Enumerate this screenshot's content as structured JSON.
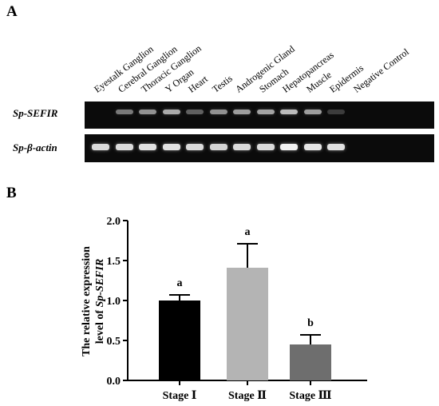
{
  "panel_a": {
    "letter": "A",
    "lanes": [
      "Eyestalk Ganglion",
      "Cerebral Ganglion",
      "Thoracic Ganglion",
      "Y Organ",
      "Heart",
      "Testis",
      "Androgenic Gland",
      "Stomach",
      "Hepatopancreas",
      "Muscle",
      "Epidermis",
      "Negative Control"
    ],
    "genes": [
      {
        "label": "Sp-SEFIR",
        "band_intensity": [
          0.0,
          0.45,
          0.55,
          0.65,
          0.35,
          0.55,
          0.6,
          0.62,
          0.72,
          0.6,
          0.2,
          0.0
        ]
      },
      {
        "label": "Sp-β-actin",
        "band_intensity": [
          0.85,
          0.85,
          0.88,
          0.88,
          0.85,
          0.82,
          0.85,
          0.85,
          0.95,
          0.9,
          0.88,
          0.0
        ]
      }
    ],
    "colors": {
      "gel": "#0b0b0b",
      "band": "#ffffff"
    }
  },
  "panel_b": {
    "letter": "B"
  },
  "chart_data": {
    "type": "bar",
    "categories": [
      "Stage Ⅰ",
      "Stage Ⅱ",
      "Stage Ⅲ"
    ],
    "values": [
      1.0,
      1.41,
      0.45
    ],
    "errors": [
      0.07,
      0.3,
      0.12
    ],
    "significance": [
      "a",
      "a",
      "b"
    ],
    "colors": [
      "#000000",
      "#b4b4b4",
      "#6e6e6e"
    ],
    "xlabel": "",
    "ylabel_line1": "The relative expression",
    "ylabel_line2_prefix": "level of ",
    "ylabel_line2_gene": "Sp-SEFIR",
    "ylim": [
      0,
      2.0
    ],
    "yticks": [
      "0.0",
      "0.5",
      "1.0",
      "1.5",
      "2.0"
    ]
  }
}
